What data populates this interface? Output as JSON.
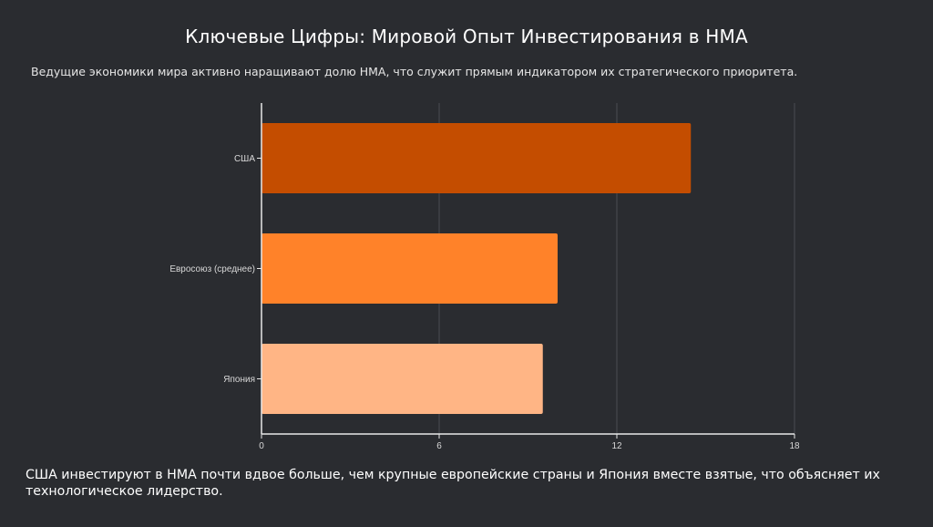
{
  "slide": {
    "title": "Ключевые Цифры: Мировой Опыт Инвестирования в НМА",
    "subtitle": "Ведущие экономики мира активно наращивают долю НМА, что служит прямым индикатором их стратегического приоритета.",
    "conclusion": "США инвестируют в НМА почти вдвое больше, чем крупные европейские страны и Япония вместе взятые, что объясняет их технологическое лидерство."
  },
  "colors": {
    "background": "#2a2c30",
    "axis": "#e8e8e8",
    "grid": "#4a4c52",
    "tick_text": "#d8d8d8"
  },
  "chart_data": {
    "type": "bar",
    "orientation": "horizontal",
    "categories": [
      "США",
      "Евросоюз (среднее)",
      "Япония"
    ],
    "values": [
      14.5,
      10,
      9.5
    ],
    "bar_colors": [
      "#c44d00",
      "#ff8229",
      "#ffb585"
    ],
    "xlim": [
      0,
      18
    ],
    "xticks": [
      "0",
      "6",
      "12",
      "18"
    ],
    "xlabel": "",
    "ylabel": "",
    "grid": true,
    "legend": "none"
  }
}
